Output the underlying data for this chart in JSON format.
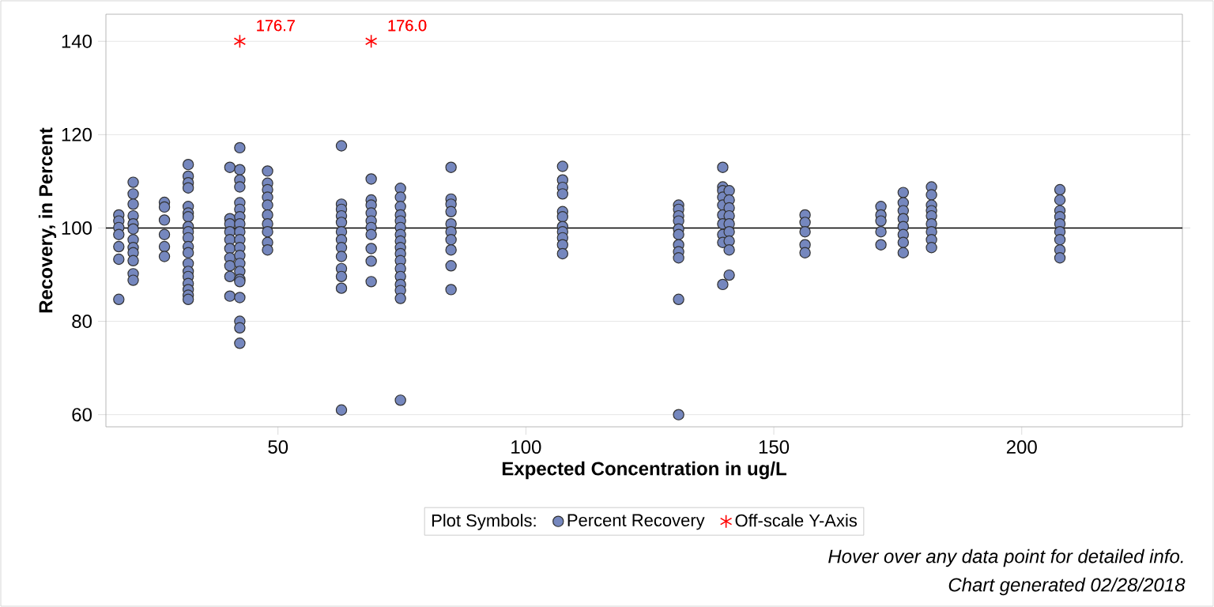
{
  "chart_data": {
    "type": "scatter",
    "xlabel": "Expected Concentration in ug/L",
    "ylabel": "Recovery, in Percent",
    "xlim": [
      15.3,
      232.4
    ],
    "ylim": [
      57.4,
      145.8
    ],
    "xticks": [
      50,
      100,
      150,
      200
    ],
    "yticks": [
      60,
      80,
      100,
      120,
      140
    ],
    "grid": "y",
    "legend": "bottom",
    "legend_title": "Plot Symbols:",
    "ref_lines": [
      {
        "axis": "y",
        "value": 100,
        "color": "#000000"
      }
    ],
    "annotations": [
      "Hover over any data point for detailed info.",
      "Chart generated 02/28/2018",
      {
        "text": "176.7",
        "x": 42.3,
        "y": 140
      },
      {
        "text": "176.0",
        "x": 68.8,
        "y": 140
      }
    ],
    "series": [
      {
        "name": "Percent Recovery",
        "color": "#7587be",
        "marker": "circle",
        "x": [
          17.9,
          17.9,
          17.9,
          17.9,
          17.9,
          17.9,
          17.9,
          20.8,
          20.8,
          20.8,
          20.8,
          20.8,
          20.8,
          20.8,
          20.8,
          20.8,
          20.8,
          20.8,
          20.8,
          27.1,
          27.1,
          27.1,
          27.1,
          27.1,
          27.1,
          31.9,
          31.9,
          31.9,
          31.9,
          31.9,
          31.9,
          31.9,
          31.9,
          31.9,
          31.9,
          31.9,
          31.9,
          31.9,
          31.9,
          31.9,
          31.9,
          31.9,
          31.9,
          31.9,
          40.3,
          40.3,
          40.3,
          40.3,
          40.3,
          40.3,
          40.3,
          40.3,
          40.3,
          40.3,
          42.3,
          42.3,
          42.3,
          42.3,
          42.3,
          42.3,
          42.3,
          42.3,
          42.3,
          42.3,
          42.3,
          42.3,
          42.3,
          42.3,
          42.3,
          42.3,
          42.3,
          42.3,
          42.3,
          42.3,
          47.9,
          47.9,
          47.9,
          47.9,
          47.9,
          47.9,
          47.9,
          47.9,
          47.9,
          47.9,
          62.8,
          62.8,
          62.8,
          62.8,
          62.8,
          62.8,
          62.8,
          62.8,
          62.8,
          62.8,
          62.8,
          62.8,
          62.8,
          68.8,
          68.8,
          68.8,
          68.8,
          68.8,
          68.8,
          68.8,
          68.8,
          68.8,
          68.8,
          74.7,
          74.7,
          74.7,
          74.7,
          74.7,
          74.7,
          74.7,
          74.7,
          74.7,
          74.7,
          74.7,
          74.7,
          74.7,
          74.7,
          74.7,
          74.7,
          74.7,
          84.9,
          84.9,
          84.9,
          84.9,
          84.9,
          84.9,
          84.9,
          84.9,
          84.9,
          84.9,
          107.4,
          107.4,
          107.4,
          107.4,
          107.4,
          107.4,
          107.4,
          107.4,
          107.4,
          107.4,
          107.4,
          130.8,
          130.8,
          130.8,
          130.8,
          130.8,
          130.8,
          130.8,
          130.8,
          130.8,
          130.8,
          130.8,
          139.7,
          139.7,
          139.7,
          139.7,
          139.7,
          139.7,
          139.7,
          139.7,
          139.7,
          139.7,
          141.0,
          141.0,
          141.0,
          141.0,
          141.0,
          141.0,
          141.0,
          141.0,
          141.0,
          156.3,
          156.3,
          156.3,
          156.3,
          156.3,
          171.6,
          171.6,
          171.6,
          171.6,
          171.6,
          176.1,
          176.1,
          176.1,
          176.1,
          176.1,
          176.1,
          176.1,
          176.1,
          181.8,
          181.8,
          181.8,
          181.8,
          181.8,
          181.8,
          181.8,
          181.8,
          181.8,
          207.7,
          207.7,
          207.7,
          207.7,
          207.7,
          207.7,
          207.7,
          207.7,
          207.7
        ],
        "values": [
          102.8,
          101.5,
          100.1,
          98.6,
          96.0,
          93.3,
          84.7,
          109.8,
          107.3,
          105.1,
          102.6,
          100.9,
          99.8,
          97.5,
          95.8,
          94.7,
          93.0,
          90.2,
          88.8,
          105.5,
          104.5,
          101.7,
          98.6,
          96.0,
          93.9,
          113.6,
          111.1,
          109.7,
          108.6,
          104.6,
          103.2,
          102.4,
          100.3,
          99.2,
          97.9,
          96.0,
          94.7,
          92.4,
          90.7,
          89.6,
          88.1,
          86.8,
          85.6,
          84.7,
          113.0,
          102.0,
          100.9,
          99.2,
          97.5,
          95.6,
          93.6,
          91.9,
          89.6,
          85.4,
          117.2,
          112.5,
          110.3,
          108.8,
          105.4,
          104.0,
          102.4,
          100.9,
          99.2,
          97.5,
          95.8,
          94.1,
          92.4,
          90.7,
          89.0,
          88.5,
          85.1,
          80.0,
          78.6,
          75.3,
          112.2,
          109.6,
          108.2,
          106.6,
          104.9,
          102.8,
          100.9,
          99.2,
          96.9,
          95.3,
          117.6,
          105.1,
          104.0,
          102.6,
          101.2,
          99.2,
          97.5,
          95.8,
          93.9,
          91.3,
          89.6,
          87.1,
          61.0,
          110.5,
          106.0,
          104.9,
          103.2,
          101.5,
          100.1,
          98.6,
          95.6,
          92.9,
          88.5,
          108.5,
          106.6,
          104.6,
          102.8,
          101.5,
          100.1,
          98.6,
          97.2,
          95.8,
          94.5,
          93.0,
          91.3,
          89.6,
          87.9,
          86.6,
          84.9,
          63.1,
          113.0,
          106.2,
          105.1,
          103.5,
          100.9,
          99.2,
          97.5,
          95.3,
          91.9,
          86.8,
          113.2,
          110.3,
          108.7,
          107.3,
          103.5,
          102.4,
          100.3,
          99.2,
          97.9,
          96.4,
          94.5,
          104.9,
          104.0,
          102.6,
          101.5,
          99.8,
          98.6,
          96.4,
          94.9,
          93.6,
          84.7,
          60.0,
          113.0,
          108.8,
          108.0,
          106.6,
          104.9,
          102.8,
          100.9,
          98.6,
          96.9,
          87.9,
          108.0,
          106.0,
          104.3,
          102.6,
          100.9,
          99.2,
          97.2,
          95.3,
          89.9,
          102.8,
          101.2,
          99.2,
          96.4,
          94.7,
          104.6,
          102.8,
          101.5,
          99.2,
          96.4,
          107.6,
          105.4,
          103.7,
          102.0,
          100.3,
          98.6,
          96.9,
          94.7,
          108.8,
          107.1,
          104.9,
          103.7,
          102.6,
          100.9,
          99.2,
          97.5,
          95.8,
          108.2,
          106.0,
          103.7,
          102.4,
          100.9,
          99.2,
          97.5,
          95.3,
          93.6
        ]
      },
      {
        "name": "Off-scale Y-Axis",
        "color": "#ff0000",
        "marker": "cross",
        "x": [
          42.3,
          68.8
        ],
        "values": [
          140,
          140
        ]
      }
    ]
  }
}
